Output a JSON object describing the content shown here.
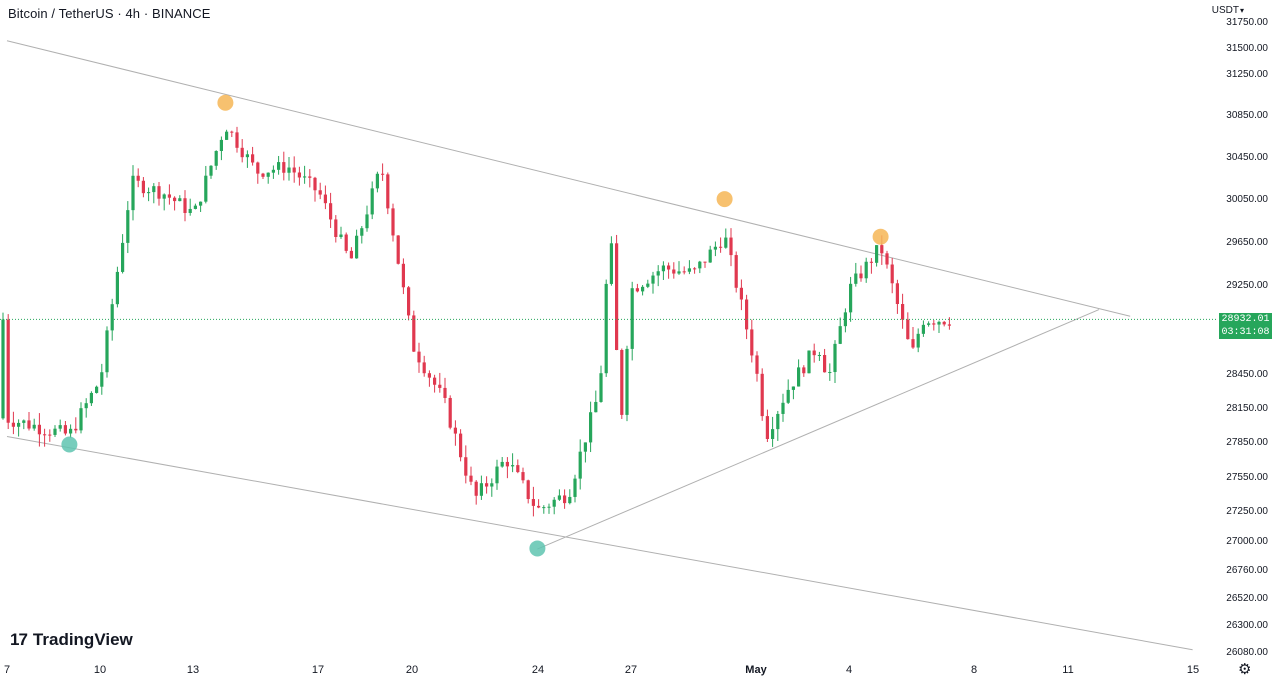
{
  "header": {
    "symbol_title": "Bitcoin / TetherUS · 4h · BINANCE",
    "currency": "USDT"
  },
  "price_label": {
    "price": "28932.01",
    "countdown": "03:31:08"
  },
  "branding": {
    "logo_text": "TradingView",
    "logo_mark": "17"
  },
  "colors": {
    "up": "#26a65b",
    "down": "#e0384f",
    "marker_high": "#f6b656",
    "marker_low": "#5fc4b0",
    "trendline": "#b0b0b0"
  },
  "chart_data": {
    "type": "candlestick",
    "y_ticks": [
      "31750.00",
      "31500.00",
      "31250.00",
      "30850.00",
      "30450.00",
      "30050.00",
      "29650.00",
      "29250.00",
      "28450.00",
      "28150.00",
      "27850.00",
      "27550.00",
      "27250.00",
      "27000.00",
      "26760.00",
      "26520.00",
      "26300.00",
      "26080.00"
    ],
    "x_ticks": [
      "7",
      "10",
      "13",
      "17",
      "20",
      "24",
      "27",
      "May",
      "4",
      "8",
      "11",
      "15"
    ],
    "last_price": 28932.01,
    "trendlines": [
      {
        "name": "upper-resistance",
        "from": [
          "Apr 7",
          31560
        ],
        "to": [
          "May 13",
          28960
        ]
      },
      {
        "name": "lower-channel",
        "from": [
          "Apr 7",
          27890
        ],
        "to": [
          "May 15",
          26090
        ]
      },
      {
        "name": "rising-support",
        "from": [
          "Apr 24",
          26925
        ],
        "to": [
          "May 12",
          29020
        ]
      }
    ],
    "markers": [
      {
        "type": "high",
        "date": "Apr 14",
        "price": 30960
      },
      {
        "type": "high",
        "date": "Apr 30",
        "price": 30040
      },
      {
        "type": "high",
        "date": "May 5",
        "price": 29690
      },
      {
        "type": "low",
        "date": "Apr 9",
        "price": 27820
      },
      {
        "type": "low",
        "date": "Apr 24",
        "price": 26930
      }
    ],
    "keypoints": [
      {
        "date": "Apr 7",
        "price": 28050
      },
      {
        "date": "Apr 9",
        "price": 27900
      },
      {
        "date": "Apr 10",
        "price": 28400
      },
      {
        "date": "Apr 11",
        "price": 30200
      },
      {
        "date": "Apr 12",
        "price": 30100
      },
      {
        "date": "Apr 13",
        "price": 29900
      },
      {
        "date": "Apr 14",
        "price": 30750
      },
      {
        "date": "Apr 15",
        "price": 30300
      },
      {
        "date": "Apr 16",
        "price": 30350
      },
      {
        "date": "Apr 17",
        "price": 30100
      },
      {
        "date": "Apr 18",
        "price": 29450
      },
      {
        "date": "Apr 19",
        "price": 30350
      },
      {
        "date": "Apr 20",
        "price": 28700
      },
      {
        "date": "Apr 21",
        "price": 28200
      },
      {
        "date": "Apr 22",
        "price": 27350
      },
      {
        "date": "Apr 23",
        "price": 27700
      },
      {
        "date": "Apr 24",
        "price": 27250
      },
      {
        "date": "Apr 25",
        "price": 27400
      },
      {
        "date": "Apr 26",
        "price": 28300
      },
      {
        "date": "Apr 26b",
        "price": 29800
      },
      {
        "date": "Apr 26c",
        "price": 27950
      },
      {
        "date": "Apr 27",
        "price": 29200
      },
      {
        "date": "Apr 28",
        "price": 29400
      },
      {
        "date": "Apr 29",
        "price": 29350
      },
      {
        "date": "Apr 30",
        "price": 29700
      },
      {
        "date": "May 1",
        "price": 28500
      },
      {
        "date": "May 1b",
        "price": 27900
      },
      {
        "date": "May 2",
        "price": 28300
      },
      {
        "date": "May 3",
        "price": 28700
      },
      {
        "date": "May 3b",
        "price": 28400
      },
      {
        "date": "May 4",
        "price": 29200
      },
      {
        "date": "May 5",
        "price": 29600
      },
      {
        "date": "May 6",
        "price": 28600
      },
      {
        "date": "May 6b",
        "price": 28932
      }
    ]
  }
}
